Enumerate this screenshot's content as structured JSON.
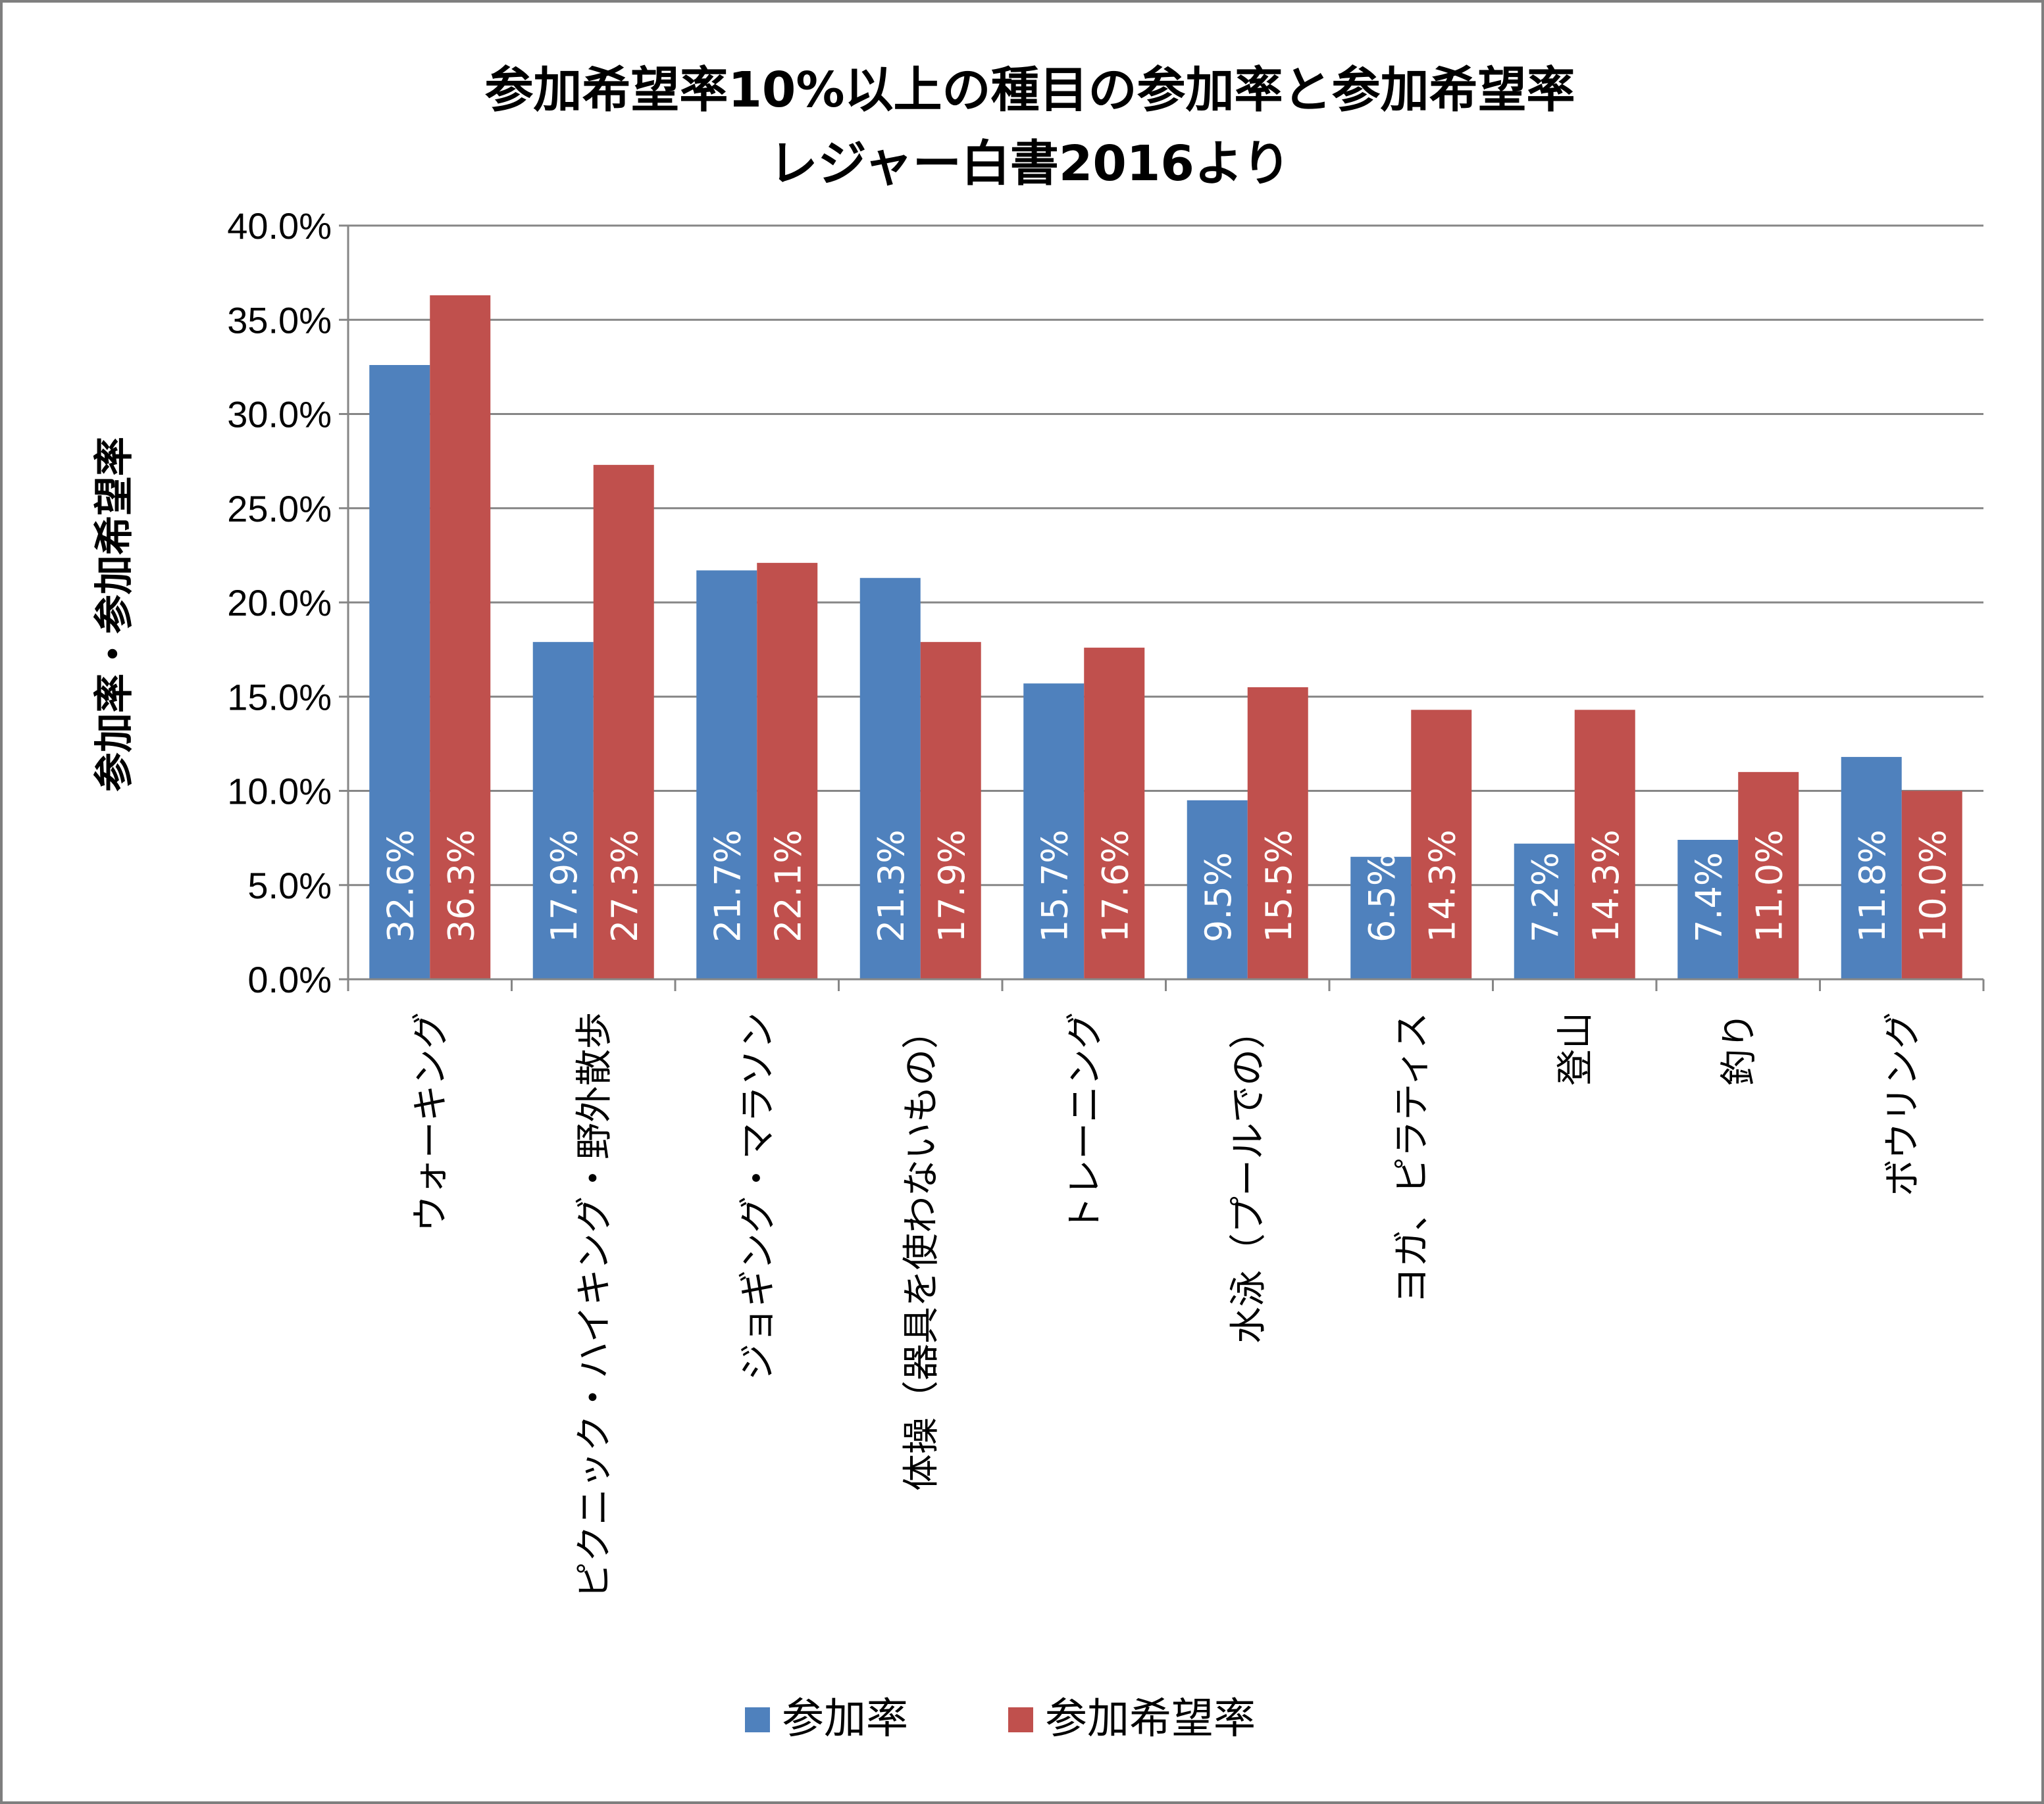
{
  "chart_data": {
    "type": "bar",
    "title": "参加希望率10%以上の種目の参加率と参加希望率",
    "subtitle": "レジャー白書2016より",
    "ylabel": "参加率・参加希望率",
    "xlabel": "",
    "ylim": [
      0,
      40
    ],
    "y_ticks": [
      "0.0%",
      "5.0%",
      "10.0%",
      "15.0%",
      "20.0%",
      "25.0%",
      "30.0%",
      "35.0%",
      "40.0%"
    ],
    "grid": true,
    "legend_position": "bottom",
    "categories": [
      "ウォーキング",
      "ピクニック・ハイキング・野外散歩",
      "ジョギング・マラソン",
      "体操（器具を使わないもの）",
      "トレーニング",
      "水泳（プールでの）",
      "ヨガ、ピラティス",
      "登山",
      "釣り",
      "ボウリング"
    ],
    "series": [
      {
        "name": "参加率",
        "color": "#4f81bd",
        "values": [
          32.6,
          17.9,
          21.7,
          21.3,
          15.7,
          9.5,
          6.5,
          7.2,
          7.4,
          11.8
        ],
        "labels": [
          "32.6%",
          "17.9%",
          "21.7%",
          "21.3%",
          "15.7%",
          "9.5%",
          "6.5%",
          "7.2%",
          "7.4%",
          "11.8%"
        ]
      },
      {
        "name": "参加希望率",
        "color": "#c0504d",
        "values": [
          36.3,
          27.3,
          22.1,
          17.9,
          17.6,
          15.5,
          14.3,
          14.3,
          11.0,
          10.0
        ],
        "labels": [
          "36.3%",
          "27.3%",
          "22.1%",
          "17.9%",
          "17.6%",
          "15.5%",
          "14.3%",
          "14.3%",
          "11.0%",
          "10.0%"
        ]
      }
    ]
  }
}
